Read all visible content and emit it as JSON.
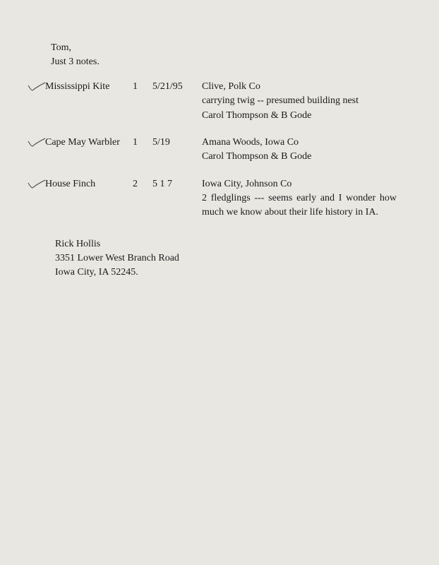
{
  "greeting": {
    "line1": "Tom,",
    "line2": "Just 3 notes."
  },
  "entries": [
    {
      "species": "Mississippi Kite",
      "count": "1",
      "date": "5/21/95",
      "notes": "Clive, Polk Co\ncarrying twig -- presumed building nest\nCarol Thompson & B Gode"
    },
    {
      "species": "Cape May Warbler",
      "count": "1",
      "date": "5/19",
      "notes": "Amana Woods, Iowa Co\nCarol Thompson & B Gode"
    },
    {
      "species": "House Finch",
      "count": "2",
      "date": "5 1 7",
      "notes": "Iowa City, Johnson Co\n2 fledglings --- seems early and I wonder how much we know about their life history in IA."
    }
  ],
  "signature": {
    "name": "Rick Hollis",
    "addr1": "3351 Lower West Branch Road",
    "addr2": "Iowa City, IA  52245."
  }
}
